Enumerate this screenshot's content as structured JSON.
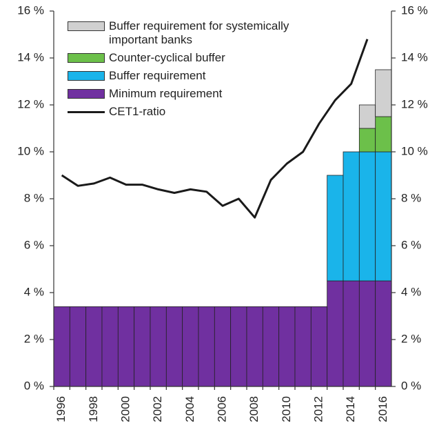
{
  "chart_data": {
    "type": "bar",
    "categories": [
      1996,
      null,
      1998,
      null,
      2000,
      null,
      2002,
      null,
      2004,
      null,
      2006,
      null,
      2008,
      null,
      2010,
      null,
      2012,
      null,
      2014,
      null,
      2016
    ],
    "stacked": true,
    "series": [
      {
        "name": "Minimum requirement",
        "color": "#7030a0",
        "values": [
          3.4,
          3.4,
          3.4,
          3.4,
          3.4,
          3.4,
          3.4,
          3.4,
          3.4,
          3.4,
          3.4,
          3.4,
          3.4,
          3.4,
          3.4,
          3.4,
          3.4,
          4.5,
          4.5,
          4.5,
          4.5
        ]
      },
      {
        "name": "Buffer requirement",
        "color": "#1ab4ea",
        "values": [
          null,
          null,
          null,
          null,
          null,
          null,
          null,
          null,
          null,
          null,
          null,
          null,
          null,
          null,
          null,
          null,
          null,
          4.5,
          5.5,
          5.5,
          5.5
        ]
      },
      {
        "name": "Counter-cyclical buffer",
        "color": "#6cc04a",
        "values": [
          null,
          null,
          null,
          null,
          null,
          null,
          null,
          null,
          null,
          null,
          null,
          null,
          null,
          null,
          null,
          null,
          null,
          null,
          null,
          1.0,
          1.5
        ]
      },
      {
        "name": "Buffer requirement for systemically important banks",
        "color": "#d0d0d0",
        "values": [
          null,
          null,
          null,
          null,
          null,
          null,
          null,
          null,
          null,
          null,
          null,
          null,
          null,
          null,
          null,
          null,
          null,
          null,
          null,
          1.0,
          2.0
        ]
      },
      {
        "name": "CET1-ratio",
        "type": "line",
        "color": "#1a1a1a",
        "values": [
          9.0,
          8.55,
          8.65,
          8.9,
          8.6,
          8.6,
          8.4,
          8.25,
          8.4,
          8.3,
          7.7,
          8.0,
          7.2,
          8.8,
          9.5,
          10.0,
          11.2,
          12.2,
          12.9,
          14.8,
          null
        ]
      }
    ],
    "legend_order": [
      3,
      2,
      1,
      0,
      4
    ],
    "ylim": [
      0,
      16
    ],
    "yticks": [
      {
        "value": 0,
        "label": "0 %"
      },
      {
        "value": 2,
        "label": "2 %"
      },
      {
        "value": 4,
        "label": "4 %"
      },
      {
        "value": 6,
        "label": "6 %"
      },
      {
        "value": 8,
        "label": "8 %"
      },
      {
        "value": 10,
        "label": "10 %"
      },
      {
        "value": 12,
        "label": "12 %"
      },
      {
        "value": 14,
        "label": "14 %"
      },
      {
        "value": 16,
        "label": "16 %"
      }
    ],
    "y2lim": [
      0,
      16
    ],
    "y2ticks": [
      {
        "value": 0,
        "label": "0 %"
      },
      {
        "value": 2,
        "label": "2 %"
      },
      {
        "value": 4,
        "label": "4 %"
      },
      {
        "value": 6,
        "label": "6 %"
      },
      {
        "value": 8,
        "label": "8 %"
      },
      {
        "value": 10,
        "label": "10 %"
      },
      {
        "value": 12,
        "label": "12 %"
      },
      {
        "value": 14,
        "label": "14 %"
      },
      {
        "value": 16,
        "label": "16 %"
      }
    ],
    "grid": false
  }
}
